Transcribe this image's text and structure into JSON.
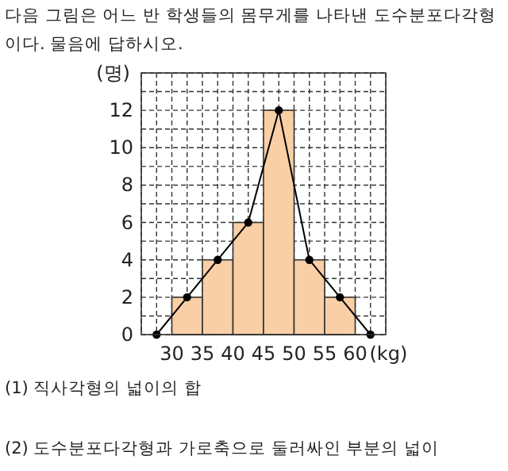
{
  "chart_data": {
    "type": "histogram",
    "title": "다음 그림은 어느 반 학생들의 몸무게를 나타낸 도수분포다각형이다. 물음에 답하시오.",
    "xlabel": "(kg)",
    "ylabel": "(명)",
    "bins": [
      30,
      35,
      40,
      45,
      50,
      55,
      60
    ],
    "values": [
      2,
      4,
      6,
      12,
      4,
      2
    ],
    "color": "#f9cfa6",
    "series": [
      {
        "type": "line",
        "x": [
          27.5,
          32.5,
          37.5,
          42.5,
          47.5,
          52.5,
          57.5,
          62.5
        ],
        "values": [
          0,
          2,
          4,
          6,
          12,
          4,
          2,
          0
        ],
        "color": "#000000",
        "marker": "circle"
      }
    ],
    "xlim": [
      25,
      65
    ],
    "ylim": [
      0,
      14
    ],
    "xticks": [
      {
        "value": 25,
        "label": null
      },
      {
        "value": 27.5,
        "label": null
      },
      30,
      {
        "value": 32.5,
        "label": null
      },
      35,
      {
        "value": 37.5,
        "label": null
      },
      40,
      {
        "value": 42.5,
        "label": null
      },
      45,
      {
        "value": 47.5,
        "label": null
      },
      50,
      {
        "value": 52.5,
        "label": null
      },
      55,
      {
        "value": 57.5,
        "label": null
      },
      60,
      {
        "value": 62.5,
        "label": null
      },
      {
        "value": 65,
        "label": null
      }
    ],
    "yticks": [
      0,
      {
        "value": 1,
        "label": null
      },
      2,
      {
        "value": 3,
        "label": null
      },
      4,
      {
        "value": 5,
        "label": null
      },
      6,
      {
        "value": 7,
        "label": null
      },
      8,
      {
        "value": 9,
        "label": null
      },
      10,
      {
        "value": 11,
        "label": null
      },
      12,
      {
        "value": 13,
        "label": null
      },
      {
        "value": 14,
        "label": null
      }
    ],
    "grid": true,
    "annotations": [
      "(1) 직사각형의 넓이의 합",
      "(2) 도수분포다각형과 가로축으로 둘러싸인 부분의 넓이"
    ]
  }
}
